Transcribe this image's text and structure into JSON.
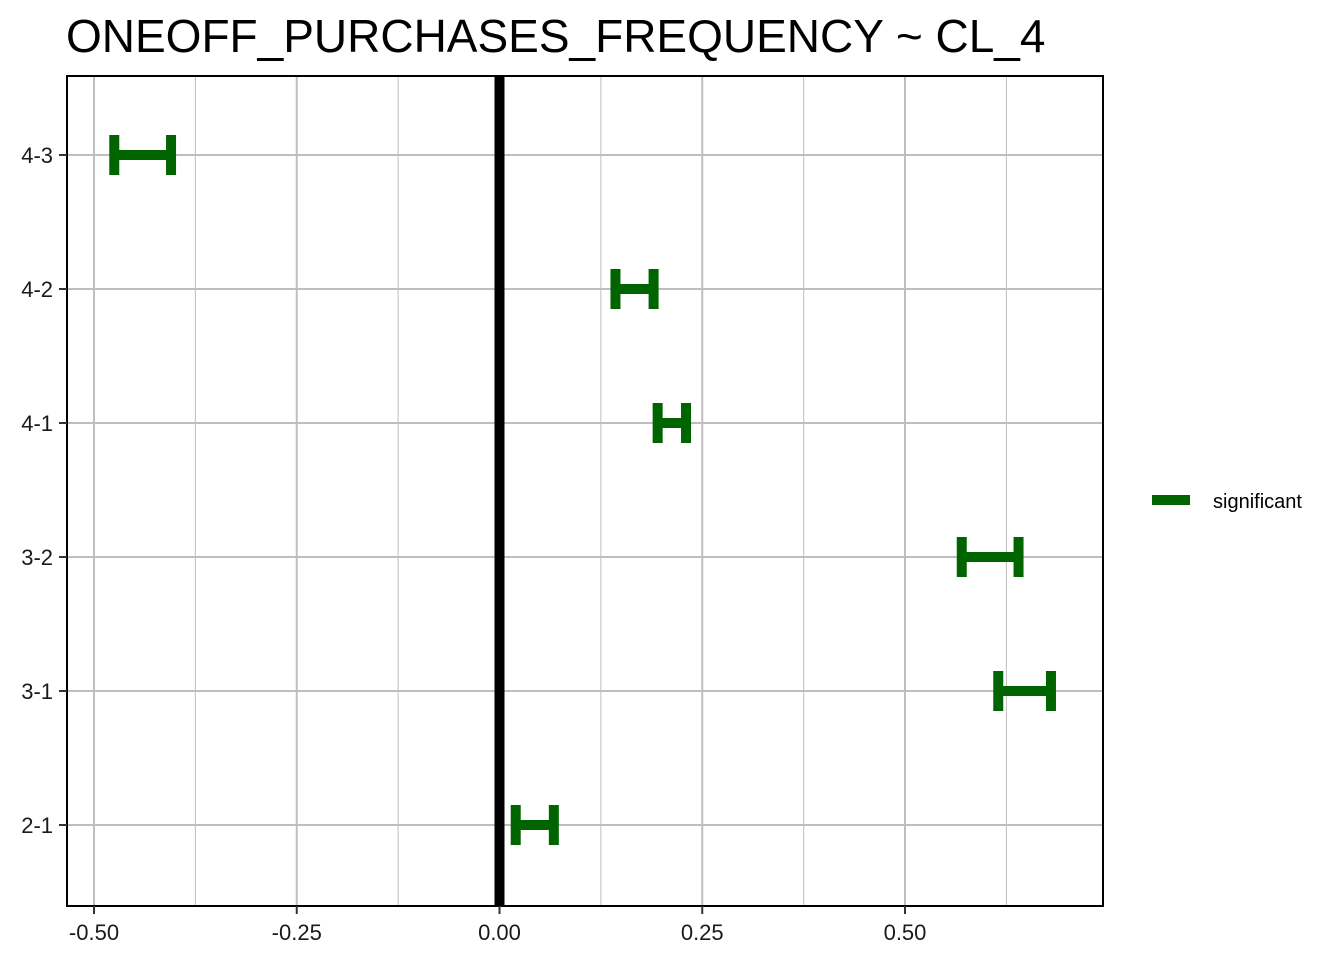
{
  "chart_data": {
    "type": "errorbar",
    "title": "ONEOFF_PURCHASES_FREQUENCY  ~ CL_4",
    "xlabel": "",
    "ylabel": "",
    "xlim": [
      -0.53,
      0.74
    ],
    "x_ticks": [
      -0.5,
      -0.25,
      0.0,
      0.25,
      0.5
    ],
    "x_tick_labels": [
      "-0.50",
      "-0.25",
      "0.00",
      "0.25",
      "0.50"
    ],
    "categories": [
      "4-3",
      "4-2",
      "4-1",
      "3-2",
      "3-1",
      "2-1"
    ],
    "intervals": [
      {
        "label": "4-3",
        "lwr": -0.475,
        "upr": -0.405
      },
      {
        "label": "4-2",
        "lwr": 0.143,
        "upr": 0.19
      },
      {
        "label": "4-1",
        "lwr": 0.195,
        "upr": 0.23
      },
      {
        "label": "3-2",
        "lwr": 0.57,
        "upr": 0.64
      },
      {
        "label": "3-1",
        "lwr": 0.615,
        "upr": 0.68
      },
      {
        "label": "2-1",
        "lwr": 0.02,
        "upr": 0.067
      }
    ],
    "reference_line": 0,
    "grid": true,
    "legend": {
      "position": "right",
      "entries": [
        {
          "name": "significant",
          "color": "#006400"
        }
      ]
    },
    "colors": {
      "significant": "#006400",
      "reference": "#000000",
      "grid": "#bebebe"
    }
  }
}
